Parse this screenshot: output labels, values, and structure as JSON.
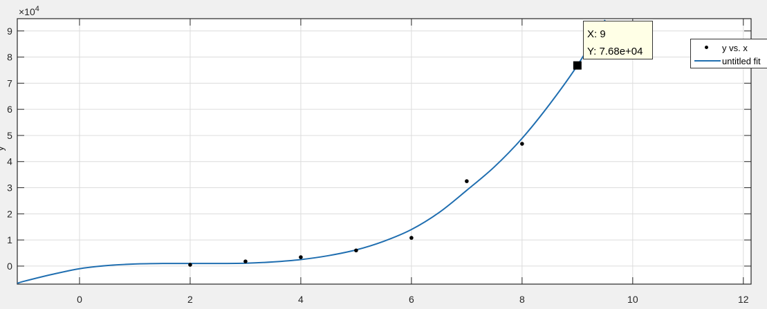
{
  "chart_data": {
    "type": "scatter",
    "title": "",
    "xlabel": "",
    "ylabel": "y",
    "y_exponent_label": "×10",
    "y_exponent_power": "4",
    "xlim": [
      -1.125,
      12.14
    ],
    "ylim": [
      -0.69,
      9.47
    ],
    "y_units_scale": 10000,
    "grid": true,
    "x_ticks": [
      "0",
      "2",
      "4",
      "6",
      "8",
      "10",
      "12"
    ],
    "y_ticks": [
      "0",
      "1",
      "2",
      "3",
      "4",
      "5",
      "6",
      "7",
      "8",
      "9"
    ],
    "legend_position": "top-right",
    "series": [
      {
        "name": "y vs. x",
        "kind": "points",
        "color": "#000000",
        "x": [
          2,
          3,
          4,
          5,
          6,
          7,
          8,
          9
        ],
        "y": [
          0.05,
          0.18,
          0.34,
          0.6,
          1.08,
          3.25,
          4.68,
          7.68
        ]
      },
      {
        "name": "untitled fit",
        "kind": "line",
        "color": "#1f6eb0",
        "x": [
          -1.125,
          -1,
          -0.5,
          0,
          0.5,
          1,
          1.5,
          2,
          2.5,
          3,
          3.5,
          4,
          4.5,
          5,
          5.5,
          6,
          6.5,
          7,
          7.5,
          8,
          8.5,
          9,
          9.5
        ],
        "y": [
          -0.66,
          -0.58,
          -0.32,
          -0.1,
          0.02,
          0.08,
          0.1,
          0.1,
          0.1,
          0.11,
          0.16,
          0.25,
          0.4,
          0.62,
          0.95,
          1.4,
          2.05,
          2.9,
          3.8,
          4.89,
          6.2,
          7.68,
          9.42
        ]
      }
    ],
    "datatip": {
      "x_label": "X: 9",
      "y_label": "Y: 7.68e+04",
      "x": 9,
      "y": 7.68
    }
  }
}
